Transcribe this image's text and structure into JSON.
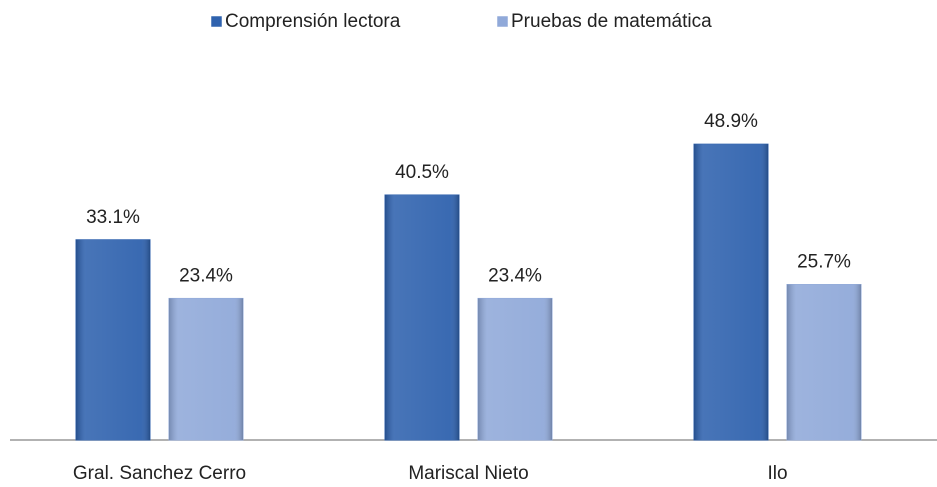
{
  "chart_data": {
    "type": "bar",
    "categories": [
      "Gral. Sanchez Cerro",
      "Mariscal Nieto",
      "Ilo"
    ],
    "series": [
      {
        "name": "Comprensión lectora",
        "color": "#2f62ae",
        "values": [
          33.1,
          40.5,
          48.9
        ],
        "value_labels": [
          "33.1%",
          "40.5%",
          "48.9%"
        ]
      },
      {
        "name": "Pruebas de matemática",
        "color": "#90a9d9",
        "values": [
          23.4,
          23.4,
          25.7
        ],
        "value_labels": [
          "23.4%",
          "23.4%",
          "25.7%"
        ]
      }
    ],
    "legend": "top"
  }
}
